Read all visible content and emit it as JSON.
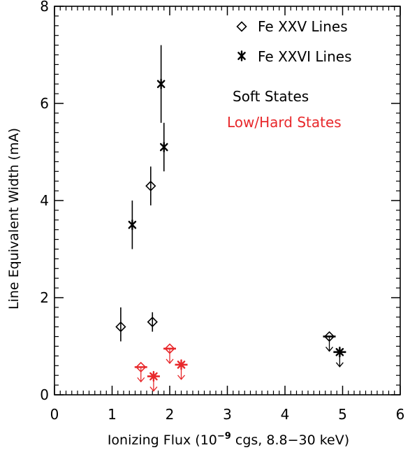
{
  "chart_data": {
    "type": "scatter",
    "xlabel_main": "Ionizing Flux (10",
    "xlabel_exp": "−9",
    "xlabel_rest": " cgs, 8.8−30 keV)",
    "ylabel": "Line Equivalent Width (mA)",
    "xlim": [
      0,
      6
    ],
    "ylim": [
      0,
      8
    ],
    "xticks": [
      0,
      1,
      2,
      3,
      4,
      5,
      6
    ],
    "yticks": [
      0,
      2,
      4,
      6,
      8
    ],
    "xtick_labels": [
      "0",
      "1",
      "2",
      "3",
      "4",
      "5",
      "6"
    ],
    "ytick_labels": [
      "0",
      "2",
      "4",
      "6",
      "8"
    ],
    "grid": false,
    "legend_position": "top-right",
    "legend": {
      "fexxv": "Fe XXV Lines",
      "fexxvi": "Fe XXVI Lines",
      "soft": "Soft States",
      "hard": "Low/Hard States"
    },
    "colors": {
      "soft": "#000000",
      "hard": "#e8282b"
    },
    "series": [
      {
        "name": "Fe XXV Lines",
        "marker": "diamond",
        "points": [
          {
            "x": 1.15,
            "y": 1.4,
            "ylo": 1.1,
            "yhi": 1.8,
            "state": "soft",
            "upper_limit": false
          },
          {
            "x": 1.7,
            "y": 1.5,
            "ylo": 1.3,
            "yhi": 1.7,
            "state": "soft",
            "upper_limit": false
          },
          {
            "x": 1.67,
            "y": 4.3,
            "ylo": 3.9,
            "yhi": 4.7,
            "state": "soft",
            "upper_limit": false
          },
          {
            "x": 4.77,
            "y": 1.2,
            "state": "soft",
            "upper_limit": true
          },
          {
            "x": 1.5,
            "y": 0.57,
            "state": "hard",
            "upper_limit": true
          },
          {
            "x": 2.0,
            "y": 0.95,
            "state": "hard",
            "upper_limit": true
          }
        ]
      },
      {
        "name": "Fe XXVI Lines",
        "marker": "asterisk",
        "points": [
          {
            "x": 1.35,
            "y": 3.5,
            "ylo": 3.0,
            "yhi": 4.0,
            "state": "soft",
            "upper_limit": false
          },
          {
            "x": 1.85,
            "y": 6.4,
            "ylo": 5.6,
            "yhi": 7.2,
            "state": "soft",
            "upper_limit": false
          },
          {
            "x": 1.9,
            "y": 5.1,
            "ylo": 4.6,
            "yhi": 5.6,
            "state": "soft",
            "upper_limit": false
          },
          {
            "x": 4.95,
            "y": 0.88,
            "state": "soft",
            "upper_limit": true
          },
          {
            "x": 1.72,
            "y": 0.38,
            "state": "hard",
            "upper_limit": true
          },
          {
            "x": 2.2,
            "y": 0.62,
            "state": "hard",
            "upper_limit": true
          }
        ]
      }
    ]
  }
}
